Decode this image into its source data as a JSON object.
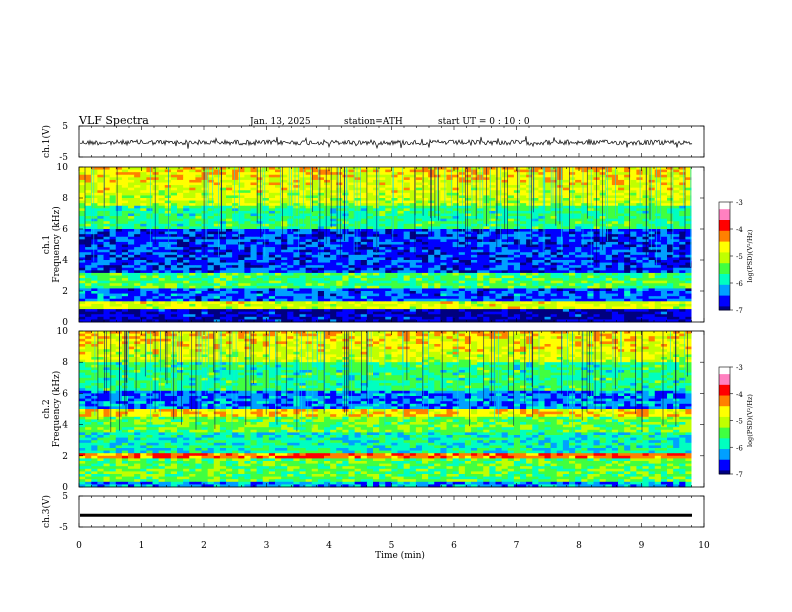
{
  "header": {
    "title": "VLF  Spectra",
    "date": "Jan.  13,  2025",
    "station": "station=ATH",
    "start": "start  UT  =    0  : 10 : 0"
  },
  "chart_data": [
    {
      "type": "line",
      "name": "waveform-ch1",
      "ylabel": "ch.1(V)",
      "ylim": [
        -5,
        5
      ],
      "yticks": [
        "5",
        "-5"
      ],
      "xlim": [
        0,
        10
      ],
      "description_level": "noise around 0 V with occasional spikes"
    },
    {
      "type": "heatmap",
      "name": "spectrogram-ch1",
      "ylabel": "ch.1\nFrequency  (kHz)",
      "ylim": [
        0,
        10
      ],
      "yticks": [
        "0",
        "2",
        "4",
        "6",
        "8",
        "10"
      ],
      "xlim": [
        0,
        9.8
      ],
      "colorbar": {
        "label": "log(PSD)(V²/Hz)",
        "range": [
          -7,
          -3
        ],
        "ticks": [
          "-3",
          "-4",
          "-5",
          "-6",
          "-7"
        ]
      }
    },
    {
      "type": "heatmap",
      "name": "spectrogram-ch2",
      "ylabel": "ch.2\nFrequency  (kHz)",
      "ylim": [
        0,
        10
      ],
      "yticks": [
        "0",
        "2",
        "4",
        "6",
        "8",
        "10"
      ],
      "xlim": [
        0,
        9.8
      ],
      "colorbar": {
        "label": "log(PSD)(V²/Hz)",
        "range": [
          -7,
          -3
        ],
        "ticks": [
          "-3",
          "-4",
          "-5",
          "-6",
          "-7"
        ]
      }
    },
    {
      "type": "line",
      "name": "waveform-ch3",
      "ylabel": "ch.3(V)",
      "ylim": [
        -5,
        5
      ],
      "yticks": [
        "5",
        "-5"
      ],
      "xlim": [
        0,
        10
      ],
      "constant_value": -1.2
    }
  ],
  "x_axis": {
    "label": "Time  (min)",
    "ticks": [
      "0",
      "1",
      "2",
      "3",
      "4",
      "5",
      "6",
      "7",
      "8",
      "9",
      "10"
    ]
  },
  "colors": {
    "colormap": [
      "#000080",
      "#0000ff",
      "#00a0ff",
      "#00ffc0",
      "#40ff40",
      "#c0ff00",
      "#ffff00",
      "#ff8000",
      "#ff0000",
      "#ff80c0",
      "#ffffff"
    ]
  }
}
